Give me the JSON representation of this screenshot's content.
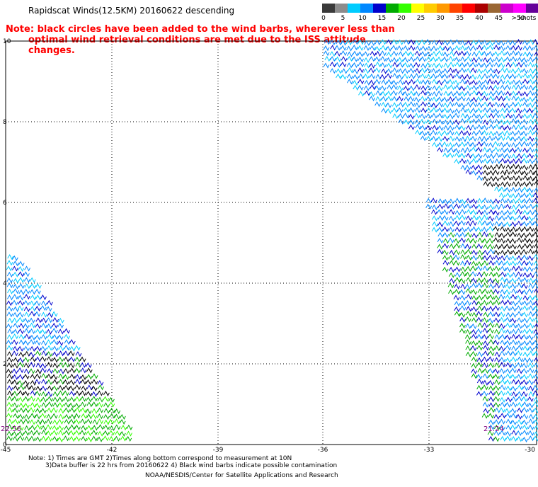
{
  "title": "Rapidscat Winds(12.5KM) 20160622 descending",
  "note": {
    "line1": "Note: black circles have been added to the wind barbs, wherever less than",
    "line2": "optimal wind retrieval conditions are met due to the ISS attitude changes."
  },
  "color_scale": {
    "unit": "knots",
    "labels": [
      "0",
      "5",
      "10",
      "15",
      "20",
      "25",
      "30",
      "35",
      "40",
      "45",
      ">50"
    ],
    "colors": [
      "#3a3a3a",
      "#8c8c8c",
      "#00ccff",
      "#0088ff",
      "#0000cc",
      "#00aa00",
      "#33ff00",
      "#ffff00",
      "#ffcc00",
      "#ff9900",
      "#ff4400",
      "#ff0000",
      "#aa0000",
      "#996633",
      "#cc00cc",
      "#ff00ff",
      "#660099"
    ]
  },
  "map": {
    "lat_labels": [
      "10",
      "8",
      "6",
      "4",
      "2",
      "0"
    ],
    "lon_labels": [
      "-45",
      "-42",
      "-39",
      "-36",
      "-33",
      "-30"
    ],
    "time_labels": {
      "left": "22:56",
      "right": "21:24"
    }
  },
  "footer": {
    "line1": "Note: 1) Times are GMT 2)Times along bottom correspond to measurement at 10N",
    "line2": "3)Data buffer is 22 hrs from 20160622 4) Black wind barbs indicate possible contamination",
    "credit": "NOAA/NESDIS/Center for Satellite Applications and Research"
  }
}
